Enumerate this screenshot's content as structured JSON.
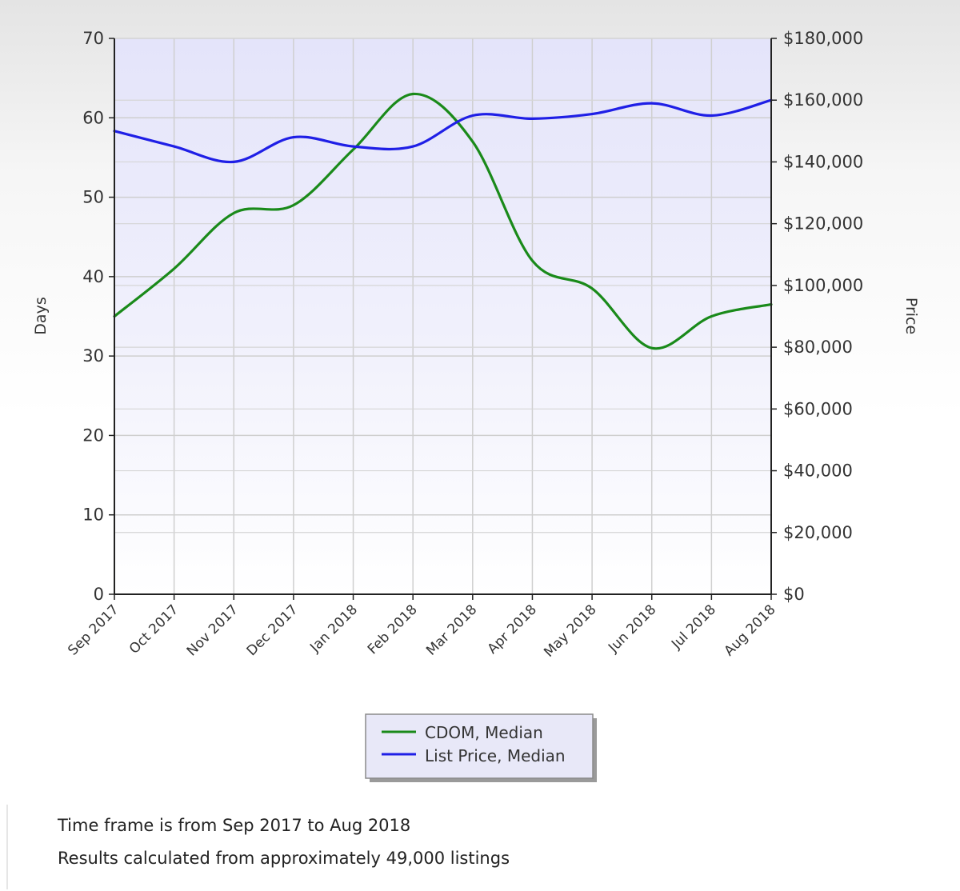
{
  "chart_data": {
    "type": "line",
    "title": "",
    "categories": [
      "Sep 2017",
      "Oct 2017",
      "Nov 2017",
      "Dec 2017",
      "Jan 2018",
      "Feb 2018",
      "Mar 2018",
      "Apr 2018",
      "May 2018",
      "Jun 2018",
      "Jul 2018",
      "Aug 2018"
    ],
    "series": [
      {
        "name": "CDOM, Median",
        "axis": "left",
        "color": "#1a8a1a",
        "values": [
          35,
          41,
          48,
          49,
          56,
          63,
          57,
          42,
          38.5,
          31,
          35,
          36.5
        ]
      },
      {
        "name": "List Price, Median",
        "axis": "right",
        "color": "#1f1fe6",
        "values": [
          150000,
          145000,
          140000,
          148000,
          145000,
          145000,
          155000,
          154000,
          155500,
          159000,
          155000,
          160000
        ]
      }
    ],
    "y_left": {
      "label": "Days",
      "range": [
        0,
        70
      ],
      "ticks": [
        "0",
        "10",
        "20",
        "30",
        "40",
        "50",
        "60",
        "70"
      ]
    },
    "y_right": {
      "label": "Price",
      "range": [
        0,
        180000
      ],
      "ticks": [
        "$0",
        "$20,000",
        "$40,000",
        "$60,000",
        "$80,000",
        "$100,000",
        "$120,000",
        "$140,000",
        "$160,000",
        "$180,000"
      ]
    },
    "grid": true,
    "legend_position": "bottom-center",
    "plot_background": "#e8e8fb"
  },
  "footer": {
    "line1": "Time frame is from Sep 2017 to Aug 2018",
    "line2": "Results calculated from approximately 49,000 listings"
  }
}
